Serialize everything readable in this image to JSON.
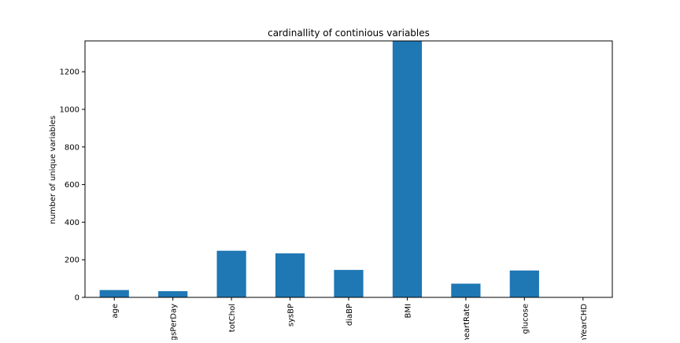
{
  "chart_data": {
    "type": "bar",
    "title": "cardinallity of continious variables",
    "xlabel": "",
    "ylabel": "number of unique variables",
    "categories": [
      "age",
      "cigsPerDay",
      "totChol",
      "sysBP",
      "diaBP",
      "BMI",
      "heartRate",
      "glucose",
      "TenYearCHD"
    ],
    "values": [
      39,
      33,
      248,
      234,
      146,
      1364,
      73,
      143,
      2
    ],
    "ylim": [
      0,
      1364
    ],
    "yticks": [
      0,
      200,
      400,
      600,
      800,
      1000,
      1200
    ],
    "grid": false,
    "legend": "none",
    "bar_color": "#1f77b4"
  }
}
